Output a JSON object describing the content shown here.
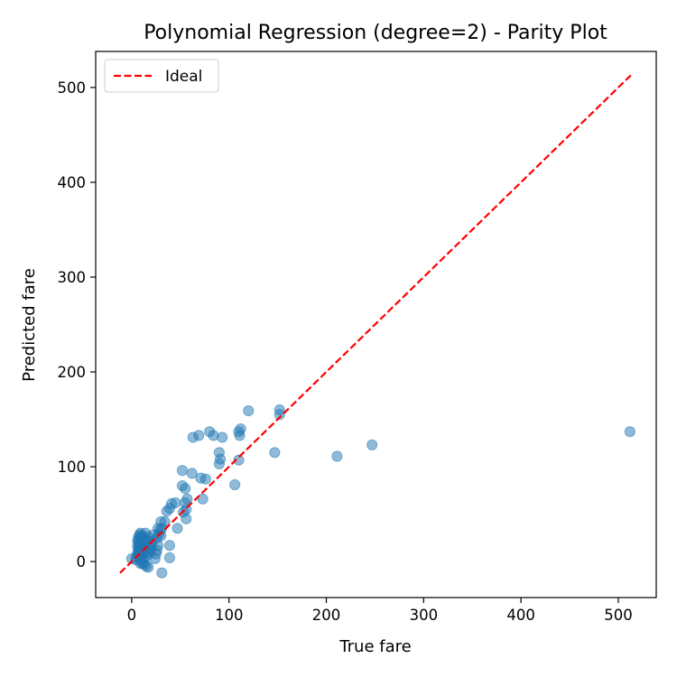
{
  "chart_data": {
    "type": "scatter",
    "title": "Polynomial Regression (degree=2) - Parity Plot",
    "xlabel": "True fare",
    "ylabel": "Predicted fare",
    "xlim": [
      -37,
      539
    ],
    "ylim": [
      -38,
      538
    ],
    "x_ticks": [
      0,
      100,
      200,
      300,
      400,
      500
    ],
    "y_ticks": [
      0,
      100,
      200,
      300,
      400,
      500
    ],
    "grid": false,
    "legend": {
      "position": "top-left",
      "entries": [
        {
          "label": "Ideal",
          "style": "dashed-line",
          "color": "#ff0000"
        }
      ]
    },
    "ideal_line": {
      "name": "Ideal",
      "x": [
        -12,
        513
      ],
      "y": [
        -12,
        513
      ],
      "color": "#ff0000"
    },
    "series": [
      {
        "color": "#1f77b4",
        "points": [
          [
            512,
            137
          ],
          [
            247,
            123
          ],
          [
            211,
            111
          ],
          [
            147,
            115
          ],
          [
            152,
            160
          ],
          [
            152,
            155
          ],
          [
            120,
            159
          ],
          [
            110,
            137
          ],
          [
            112,
            140
          ],
          [
            111,
            133
          ],
          [
            110,
            107
          ],
          [
            106,
            81
          ],
          [
            93,
            131
          ],
          [
            90,
            115
          ],
          [
            91,
            108
          ],
          [
            90,
            103
          ],
          [
            84,
            133
          ],
          [
            80,
            137
          ],
          [
            69,
            133
          ],
          [
            63,
            131
          ],
          [
            76,
            87
          ],
          [
            71,
            88
          ],
          [
            73,
            66
          ],
          [
            62,
            93
          ],
          [
            52,
            96
          ],
          [
            57,
            66
          ],
          [
            55,
            62
          ],
          [
            56,
            55
          ],
          [
            56,
            45
          ],
          [
            53,
            52
          ],
          [
            55,
            77
          ],
          [
            52,
            80
          ],
          [
            45,
            62
          ],
          [
            41,
            61
          ],
          [
            39,
            56
          ],
          [
            36,
            53
          ],
          [
            34,
            42
          ],
          [
            47,
            35
          ],
          [
            39,
            17
          ],
          [
            39,
            4
          ],
          [
            31,
            -12
          ],
          [
            30,
            42
          ],
          [
            31,
            35
          ],
          [
            29,
            33
          ],
          [
            28,
            29
          ],
          [
            30,
            27
          ],
          [
            27,
            35
          ],
          [
            26,
            25
          ],
          [
            27,
            17
          ],
          [
            26,
            12
          ],
          [
            25,
            8
          ],
          [
            24,
            3
          ],
          [
            22,
            28
          ],
          [
            21,
            21
          ],
          [
            20,
            18
          ],
          [
            20,
            14
          ],
          [
            19,
            11
          ],
          [
            18,
            8
          ],
          [
            17,
            26
          ],
          [
            16,
            22
          ],
          [
            16,
            15
          ],
          [
            15,
            10
          ],
          [
            15,
            5
          ],
          [
            14,
            30
          ],
          [
            13,
            24
          ],
          [
            13,
            18
          ],
          [
            12,
            14
          ],
          [
            12,
            9
          ],
          [
            12,
            2
          ],
          [
            11,
            27
          ],
          [
            11,
            21
          ],
          [
            11,
            16
          ],
          [
            11,
            12
          ],
          [
            10,
            7
          ],
          [
            10,
            1
          ],
          [
            9,
            30
          ],
          [
            9,
            25
          ],
          [
            9,
            19
          ],
          [
            9,
            14
          ],
          [
            9,
            10
          ],
          [
            9,
            5
          ],
          [
            9,
            -2
          ],
          [
            8,
            28
          ],
          [
            8,
            23
          ],
          [
            8,
            17
          ],
          [
            8,
            13
          ],
          [
            8,
            8
          ],
          [
            8,
            3
          ],
          [
            7,
            26
          ],
          [
            7,
            20
          ],
          [
            7,
            14
          ],
          [
            7,
            11
          ],
          [
            7,
            6
          ],
          [
            15,
            -5
          ],
          [
            17,
            -6
          ],
          [
            13,
            -3
          ],
          [
            11,
            -2
          ],
          [
            6,
            22
          ],
          [
            6,
            16
          ],
          [
            6,
            9
          ],
          [
            5,
            5
          ],
          [
            4,
            2
          ],
          [
            0,
            3
          ]
        ]
      }
    ]
  }
}
